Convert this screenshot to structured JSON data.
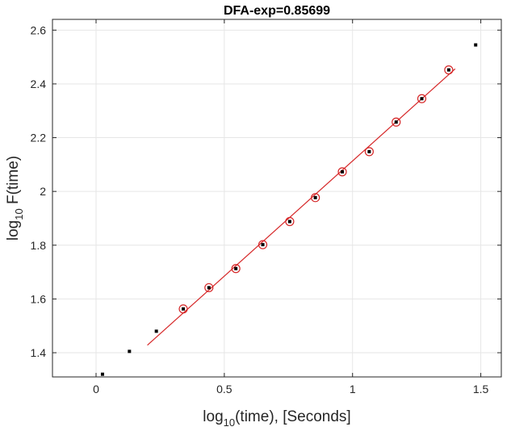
{
  "chart_data": {
    "type": "scatter",
    "title": "DFA-exp=0.85699",
    "xlabel_parts": {
      "base": "log",
      "sub": "10",
      "rest": "(time), [Seconds]"
    },
    "ylabel_parts": {
      "base": "log",
      "sub": "10",
      "rest": " F(time)"
    },
    "xlim": [
      -0.17,
      1.58
    ],
    "ylim": [
      1.31,
      2.64
    ],
    "xticks": [
      0,
      0.5,
      1,
      1.5
    ],
    "xtick_labels": [
      "0",
      "0.5",
      "1",
      "1.5"
    ],
    "yticks": [
      1.4,
      1.6,
      1.8,
      2.0,
      2.2,
      2.4,
      2.6
    ],
    "ytick_labels": [
      "1.4",
      "1.6",
      "1.8",
      "2",
      "2.2",
      "2.4",
      "2.6"
    ],
    "grid": true,
    "series": [
      {
        "marker": "square",
        "color": "#000000",
        "points": [
          {
            "x": 0.025,
            "y": 1.32
          },
          {
            "x": 0.13,
            "y": 1.405
          },
          {
            "x": 0.235,
            "y": 1.48
          },
          {
            "x": 0.34,
            "y": 1.563
          },
          {
            "x": 0.44,
            "y": 1.642
          },
          {
            "x": 0.545,
            "y": 1.713
          },
          {
            "x": 0.65,
            "y": 1.802
          },
          {
            "x": 0.755,
            "y": 1.888
          },
          {
            "x": 0.855,
            "y": 1.977
          },
          {
            "x": 0.96,
            "y": 2.073
          },
          {
            "x": 1.065,
            "y": 2.148
          },
          {
            "x": 1.17,
            "y": 2.258
          },
          {
            "x": 1.27,
            "y": 2.345
          },
          {
            "x": 1.375,
            "y": 2.452
          },
          {
            "x": 1.48,
            "y": 2.545
          }
        ]
      },
      {
        "marker": "circle-open",
        "color": "#d62728",
        "points": [
          {
            "x": 0.34,
            "y": 1.563
          },
          {
            "x": 0.44,
            "y": 1.642
          },
          {
            "x": 0.545,
            "y": 1.713
          },
          {
            "x": 0.65,
            "y": 1.802
          },
          {
            "x": 0.755,
            "y": 1.888
          },
          {
            "x": 0.855,
            "y": 1.977
          },
          {
            "x": 0.96,
            "y": 2.073
          },
          {
            "x": 1.065,
            "y": 2.148
          },
          {
            "x": 1.17,
            "y": 2.258
          },
          {
            "x": 1.27,
            "y": 2.345
          },
          {
            "x": 1.375,
            "y": 2.452
          }
        ]
      }
    ],
    "fit_line": {
      "color": "#d62728",
      "x": [
        0.2,
        1.4
      ],
      "y": [
        1.428,
        2.456
      ]
    },
    "colors": {
      "grid": "#e6e6e6",
      "axis": "#262626"
    }
  }
}
